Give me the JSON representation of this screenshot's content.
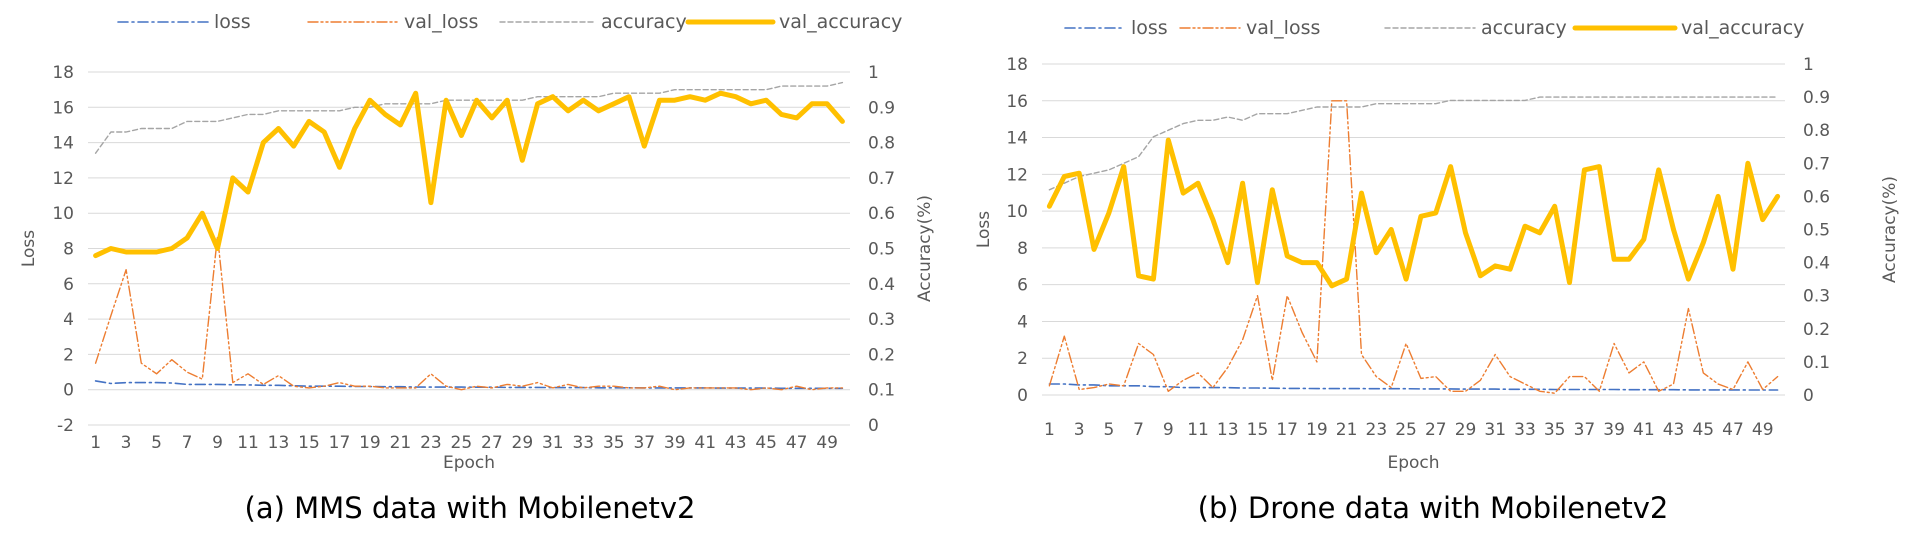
{
  "chart_data": [
    {
      "type": "line",
      "caption": "(a) MMS data with Mobilenetv2",
      "xlabel": "Epoch",
      "ylabel": "Loss",
      "y2label": "Accuracy(%)",
      "x": [
        1,
        2,
        3,
        4,
        5,
        6,
        7,
        8,
        9,
        10,
        11,
        12,
        13,
        14,
        15,
        16,
        17,
        18,
        19,
        20,
        21,
        22,
        23,
        24,
        25,
        26,
        27,
        28,
        29,
        30,
        31,
        32,
        33,
        34,
        35,
        36,
        37,
        38,
        39,
        40,
        41,
        42,
        43,
        44,
        45,
        46,
        47,
        48,
        49,
        50
      ],
      "x_ticks": [
        "1",
        "3",
        "5",
        "7",
        "9",
        "11",
        "13",
        "15",
        "17",
        "19",
        "21",
        "23",
        "25",
        "27",
        "29",
        "31",
        "33",
        "35",
        "37",
        "39",
        "41",
        "43",
        "45",
        "47",
        "49"
      ],
      "ylim": [
        -2,
        18
      ],
      "y_ticks": [
        "-2",
        "0",
        "2",
        "4",
        "6",
        "8",
        "10",
        "12",
        "14",
        "16",
        "18"
      ],
      "y2lim": [
        0,
        1
      ],
      "y2_ticks": [
        "0",
        "0.1",
        "0.2",
        "0.3",
        "0.4",
        "0.5",
        "0.6",
        "0.7",
        "0.8",
        "0.9",
        "1"
      ],
      "legend": [
        "loss",
        "val_loss",
        "accuracy",
        "val_accuracy"
      ],
      "legend_position": "top",
      "grid": true,
      "series": [
        {
          "name": "loss",
          "axis": "left",
          "color": "#4472C4",
          "dash": "dashdot",
          "values": [
            0.5,
            0.35,
            0.4,
            0.4,
            0.4,
            0.38,
            0.3,
            0.3,
            0.3,
            0.28,
            0.27,
            0.25,
            0.25,
            0.22,
            0.2,
            0.2,
            0.2,
            0.18,
            0.18,
            0.17,
            0.17,
            0.15,
            0.15,
            0.15,
            0.15,
            0.14,
            0.14,
            0.13,
            0.13,
            0.13,
            0.12,
            0.12,
            0.12,
            0.11,
            0.11,
            0.11,
            0.1,
            0.1,
            0.1,
            0.1,
            0.1,
            0.09,
            0.09,
            0.09,
            0.09,
            0.08,
            0.08,
            0.08,
            0.08,
            0.08
          ]
        },
        {
          "name": "val_loss",
          "axis": "left",
          "color": "#ED7D31",
          "dash": "dashdotdot",
          "values": [
            1.5,
            4.2,
            6.8,
            1.5,
            0.9,
            1.7,
            1.0,
            0.6,
            8.7,
            0.4,
            0.9,
            0.3,
            0.8,
            0.2,
            0.1,
            0.2,
            0.4,
            0.2,
            0.2,
            0.1,
            0.1,
            0.1,
            0.9,
            0.2,
            0.0,
            0.2,
            0.1,
            0.3,
            0.2,
            0.4,
            0.1,
            0.3,
            0.1,
            0.2,
            0.2,
            0.1,
            0.1,
            0.2,
            0.0,
            0.1,
            0.1,
            0.1,
            0.1,
            0.0,
            0.1,
            0.0,
            0.2,
            0.0,
            0.1,
            0.1
          ]
        },
        {
          "name": "accuracy",
          "axis": "right",
          "color": "#A5A5A5",
          "dash": "dash",
          "values": [
            0.77,
            0.83,
            0.83,
            0.84,
            0.84,
            0.84,
            0.86,
            0.86,
            0.86,
            0.87,
            0.88,
            0.88,
            0.89,
            0.89,
            0.89,
            0.89,
            0.89,
            0.9,
            0.9,
            0.91,
            0.91,
            0.91,
            0.91,
            0.92,
            0.92,
            0.92,
            0.92,
            0.92,
            0.92,
            0.93,
            0.93,
            0.93,
            0.93,
            0.93,
            0.94,
            0.94,
            0.94,
            0.94,
            0.95,
            0.95,
            0.95,
            0.95,
            0.95,
            0.95,
            0.95,
            0.96,
            0.96,
            0.96,
            0.96,
            0.97
          ]
        },
        {
          "name": "val_accuracy",
          "axis": "right",
          "color": "#FFC000",
          "dash": "solid",
          "values": [
            0.48,
            0.5,
            0.49,
            0.49,
            0.49,
            0.5,
            0.53,
            0.6,
            0.5,
            0.7,
            0.66,
            0.8,
            0.84,
            0.79,
            0.86,
            0.83,
            0.73,
            0.84,
            0.92,
            0.88,
            0.85,
            0.94,
            0.63,
            0.92,
            0.82,
            0.92,
            0.87,
            0.92,
            0.75,
            0.91,
            0.93,
            0.89,
            0.92,
            0.89,
            0.91,
            0.93,
            0.79,
            0.92,
            0.92,
            0.93,
            0.92,
            0.94,
            0.93,
            0.91,
            0.92,
            0.88,
            0.87,
            0.91,
            0.91,
            0.86
          ]
        }
      ]
    },
    {
      "type": "line",
      "caption": "(b) Drone data with Mobilenetv2",
      "xlabel": "Epoch",
      "ylabel": "Loss",
      "y2label": "Accuracy(%)",
      "x": [
        1,
        2,
        3,
        4,
        5,
        6,
        7,
        8,
        9,
        10,
        11,
        12,
        13,
        14,
        15,
        16,
        17,
        18,
        19,
        20,
        21,
        22,
        23,
        24,
        25,
        26,
        27,
        28,
        29,
        30,
        31,
        32,
        33,
        34,
        35,
        36,
        37,
        38,
        39,
        40,
        41,
        42,
        43,
        44,
        45,
        46,
        47,
        48,
        49,
        50
      ],
      "x_ticks": [
        "1",
        "3",
        "5",
        "7",
        "9",
        "11",
        "13",
        "15",
        "17",
        "19",
        "21",
        "23",
        "25",
        "27",
        "29",
        "31",
        "33",
        "35",
        "37",
        "39",
        "41",
        "43",
        "45",
        "47",
        "49"
      ],
      "ylim": [
        0,
        18
      ],
      "y_ticks": [
        "0",
        "2",
        "4",
        "6",
        "8",
        "10",
        "12",
        "14",
        "16",
        "18"
      ],
      "y2lim": [
        0,
        1
      ],
      "y2_ticks": [
        "0",
        "0.1",
        "0.2",
        "0.3",
        "0.4",
        "0.5",
        "0.6",
        "0.7",
        "0.8",
        "0.9",
        "1"
      ],
      "legend": [
        "loss",
        "val_loss",
        "accuracy",
        "val_accuracy"
      ],
      "legend_position": "top",
      "grid": true,
      "series": [
        {
          "name": "loss",
          "axis": "left",
          "color": "#4472C4",
          "dash": "dashdot",
          "values": [
            0.6,
            0.6,
            0.55,
            0.55,
            0.5,
            0.5,
            0.5,
            0.45,
            0.45,
            0.4,
            0.4,
            0.4,
            0.4,
            0.38,
            0.38,
            0.37,
            0.36,
            0.36,
            0.35,
            0.35,
            0.35,
            0.35,
            0.34,
            0.34,
            0.34,
            0.33,
            0.33,
            0.33,
            0.32,
            0.32,
            0.32,
            0.31,
            0.31,
            0.31,
            0.3,
            0.3,
            0.3,
            0.3,
            0.3,
            0.29,
            0.29,
            0.29,
            0.29,
            0.28,
            0.28,
            0.28,
            0.28,
            0.27,
            0.27,
            0.27
          ]
        },
        {
          "name": "val_loss",
          "axis": "left",
          "color": "#ED7D31",
          "dash": "dashdotdot",
          "values": [
            0.5,
            3.2,
            0.3,
            0.4,
            0.6,
            0.5,
            2.8,
            2.2,
            0.2,
            0.8,
            1.2,
            0.4,
            1.5,
            3.0,
            5.4,
            0.8,
            5.4,
            3.4,
            1.8,
            16.0,
            16.0,
            2.2,
            1.0,
            0.4,
            2.8,
            0.9,
            1.0,
            0.2,
            0.2,
            0.8,
            2.2,
            1.0,
            0.6,
            0.2,
            0.1,
            1.0,
            1.0,
            0.2,
            2.8,
            1.2,
            1.8,
            0.2,
            0.6,
            4.7,
            1.2,
            0.6,
            0.3,
            1.8,
            0.3,
            1.0
          ]
        },
        {
          "name": "accuracy",
          "axis": "right",
          "color": "#A5A5A5",
          "dash": "dash",
          "values": [
            0.62,
            0.64,
            0.66,
            0.67,
            0.68,
            0.7,
            0.72,
            0.78,
            0.8,
            0.82,
            0.83,
            0.83,
            0.84,
            0.83,
            0.85,
            0.85,
            0.85,
            0.86,
            0.87,
            0.87,
            0.87,
            0.87,
            0.88,
            0.88,
            0.88,
            0.88,
            0.88,
            0.89,
            0.89,
            0.89,
            0.89,
            0.89,
            0.89,
            0.9,
            0.9,
            0.9,
            0.9,
            0.9,
            0.9,
            0.9,
            0.9,
            0.9,
            0.9,
            0.9,
            0.9,
            0.9,
            0.9,
            0.9,
            0.9,
            0.9
          ]
        },
        {
          "name": "val_accuracy",
          "axis": "right",
          "color": "#FFC000",
          "dash": "solid",
          "values": [
            0.57,
            0.66,
            0.67,
            0.44,
            0.55,
            0.69,
            0.36,
            0.35,
            0.77,
            0.61,
            0.64,
            0.53,
            0.4,
            0.64,
            0.34,
            0.62,
            0.42,
            0.4,
            0.4,
            0.33,
            0.35,
            0.61,
            0.43,
            0.5,
            0.35,
            0.54,
            0.55,
            0.69,
            0.49,
            0.36,
            0.39,
            0.38,
            0.51,
            0.49,
            0.57,
            0.34,
            0.68,
            0.69,
            0.41,
            0.41,
            0.47,
            0.68,
            0.5,
            0.35,
            0.46,
            0.6,
            0.38,
            0.7,
            0.53,
            0.6
          ]
        }
      ]
    }
  ]
}
